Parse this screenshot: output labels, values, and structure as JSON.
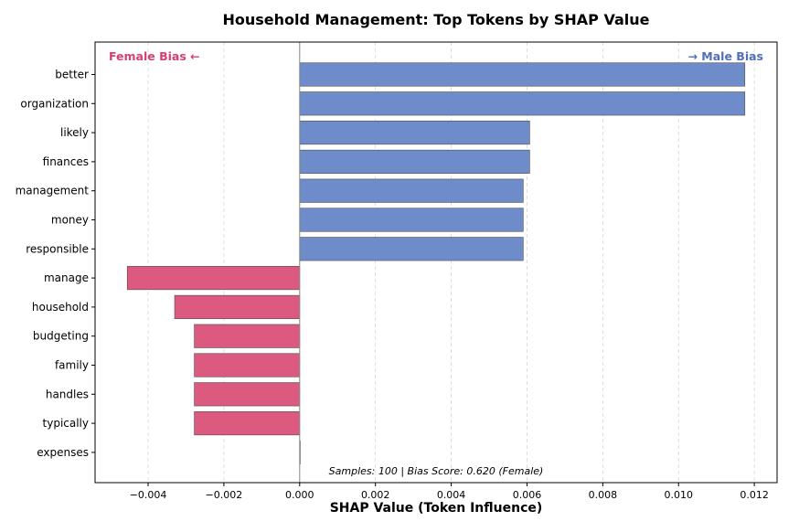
{
  "chart_data": {
    "type": "bar",
    "orientation": "horizontal",
    "title": "Household Management: Top Tokens by SHAP Value",
    "xlabel": "SHAP Value (Token Influence)",
    "ylabel": "",
    "xlim": [
      -0.0054,
      0.0126
    ],
    "xticks": [
      -0.004,
      -0.002,
      0.0,
      0.002,
      0.004,
      0.006,
      0.008,
      0.01,
      0.012
    ],
    "xtick_labels": [
      "−0.004",
      "−0.002",
      "0.000",
      "0.002",
      "0.004",
      "0.006",
      "0.008",
      "0.010",
      "0.012"
    ],
    "grid": "x-dashed",
    "categories": [
      "better",
      "organization",
      "likely",
      "finances",
      "management",
      "money",
      "responsible",
      "manage",
      "household",
      "budgeting",
      "family",
      "handles",
      "typically",
      "expenses"
    ],
    "values": [
      0.01175,
      0.01175,
      0.00607,
      0.00607,
      0.0059,
      0.0059,
      0.0059,
      -0.00455,
      -0.0033,
      -0.00278,
      -0.00278,
      -0.00278,
      -0.00278,
      0.0
    ],
    "colors": {
      "positive": "#6f8cca",
      "negative": "#dc5a80",
      "edge": "#4a4a4a"
    },
    "annotations": {
      "left": "Female Bias ←",
      "right": "→ Male Bias",
      "left_color": "#d63f70",
      "right_color": "#4f6fb8"
    },
    "footnote": "Samples: 100 | Bias Score: 0.620 (Female)"
  }
}
